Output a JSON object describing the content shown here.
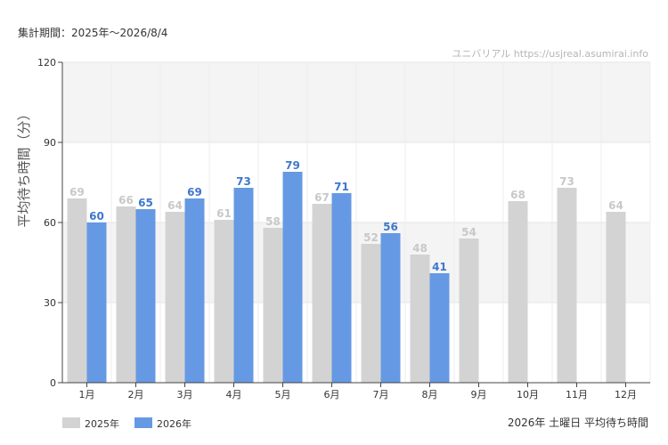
{
  "header": {
    "period": "集計期間：2025年～2026/8/4",
    "credit": "ユニバリアル  https://usjreal.asumirai.info"
  },
  "footer": {
    "caption": "2026年 土曜日 平均待ち時間"
  },
  "colors": {
    "2025": "#d3d3d3",
    "2025_label": "#c8c8c8",
    "2026": "#6699e3",
    "2026_label": "#3e77cc"
  },
  "chart_data": {
    "type": "bar",
    "title": "",
    "xlabel": "",
    "ylabel": "平均待ち時間（分）",
    "ylim": [
      0,
      120
    ],
    "yticks": [
      0,
      30,
      60,
      90,
      120
    ],
    "grid": true,
    "legend": "bottom-left",
    "categories": [
      "1月",
      "2月",
      "3月",
      "4月",
      "5月",
      "6月",
      "7月",
      "8月",
      "9月",
      "10月",
      "11月",
      "12月"
    ],
    "series": [
      {
        "name": "2025年",
        "values": [
          69,
          66,
          64,
          61,
          58,
          67,
          52,
          48,
          54,
          68,
          73,
          64
        ]
      },
      {
        "name": "2026年",
        "values": [
          60,
          65,
          69,
          73,
          79,
          71,
          56,
          41,
          null,
          null,
          null,
          null
        ]
      }
    ]
  }
}
